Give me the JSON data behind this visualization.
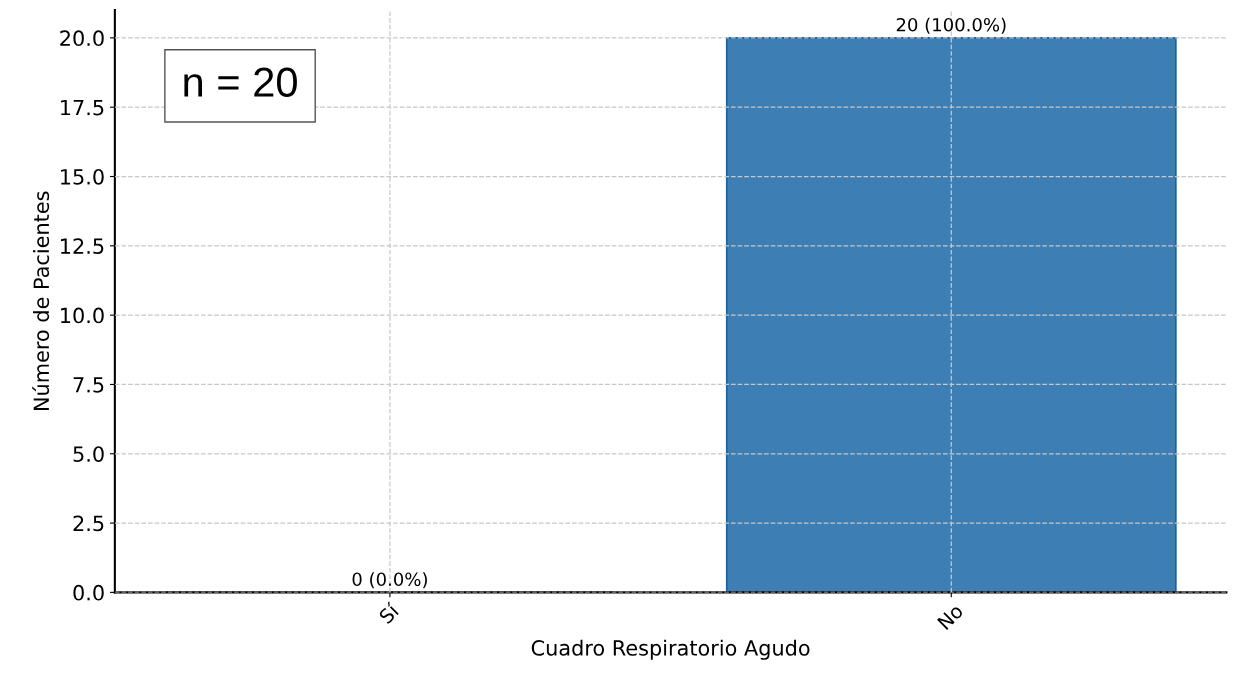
{
  "chart_data": {
    "type": "bar",
    "xlabel": "Cuadro Respiratorio Agudo",
    "ylabel": "Número de Pacientes",
    "categories": [
      "Sí",
      "No"
    ],
    "values": [
      0,
      20
    ],
    "color": "#3d7fb5",
    "value_labels": [
      "0 (0.0%)",
      "20 (100.0%)"
    ],
    "ylim": [
      0,
      21
    ],
    "yticks": [
      {
        "value": 0,
        "label": "0.0"
      },
      {
        "value": 2.5,
        "label": "2.5"
      },
      {
        "value": 5,
        "label": "5.0"
      },
      {
        "value": 7.5,
        "label": "7.5"
      },
      {
        "value": 10,
        "label": "10.0"
      },
      {
        "value": 12.5,
        "label": "12.5"
      },
      {
        "value": 15,
        "label": "15.0"
      },
      {
        "value": 17.5,
        "label": "17.5"
      },
      {
        "value": 20,
        "label": "20.0"
      }
    ],
    "grid": true,
    "annotations": [
      "n = 20"
    ]
  }
}
